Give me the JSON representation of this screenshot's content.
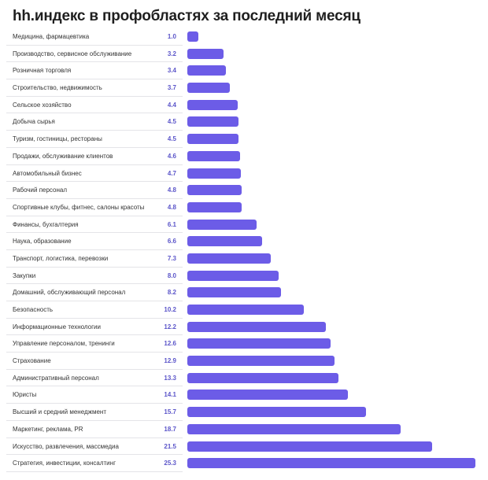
{
  "chart_data": {
    "type": "bar",
    "orientation": "horizontal",
    "title": "hh.индекс в профобластях за последний месяц",
    "bar_color": "#6c5ce7",
    "value_color": "#5b55c9",
    "xlim": [
      0,
      25.3
    ],
    "grid": false,
    "categories": [
      "Медицина, фармацевтика",
      "Производство, сервисное обслуживание",
      "Розничная торговля",
      "Строительство, недвижимость",
      "Сельское хозяйство",
      "Добыча сырья",
      "Туризм, гостиницы, рестораны",
      "Продажи, обслуживание клиентов",
      "Автомобильный бизнес",
      "Рабочий персонал",
      "Спортивные клубы, фитнес, салоны красоты",
      "Финансы, бухгалтерия",
      "Наука, образование",
      "Транспорт, логистика, перевозки",
      "Закупки",
      "Домашний, обслуживающий персонал",
      "Безопасность",
      "Информационные технологии",
      "Управление персоналом, тренинги",
      "Страхование",
      "Административный персонал",
      "Юристы",
      "Высший и средний менеджмент",
      "Маркетинг, реклама, PR",
      "Искусство, развлечения, массмедиа",
      "Стратегия, инвестиции, консалтинг"
    ],
    "values": [
      1.0,
      3.2,
      3.4,
      3.7,
      4.4,
      4.5,
      4.5,
      4.6,
      4.7,
      4.8,
      4.8,
      6.1,
      6.6,
      7.3,
      8.0,
      8.2,
      10.2,
      12.2,
      12.6,
      12.9,
      13.3,
      14.1,
      15.7,
      18.7,
      21.5,
      25.3
    ],
    "value_labels": [
      "1.0",
      "3.2",
      "3.4",
      "3.7",
      "4.4",
      "4.5",
      "4.5",
      "4.6",
      "4.7",
      "4.8",
      "4.8",
      "6.1",
      "6.6",
      "7.3",
      "8.0",
      "8.2",
      "10.2",
      "12.2",
      "12.6",
      "12.9",
      "13.3",
      "14.1",
      "15.7",
      "18.7",
      "21.5",
      "25.3"
    ]
  }
}
